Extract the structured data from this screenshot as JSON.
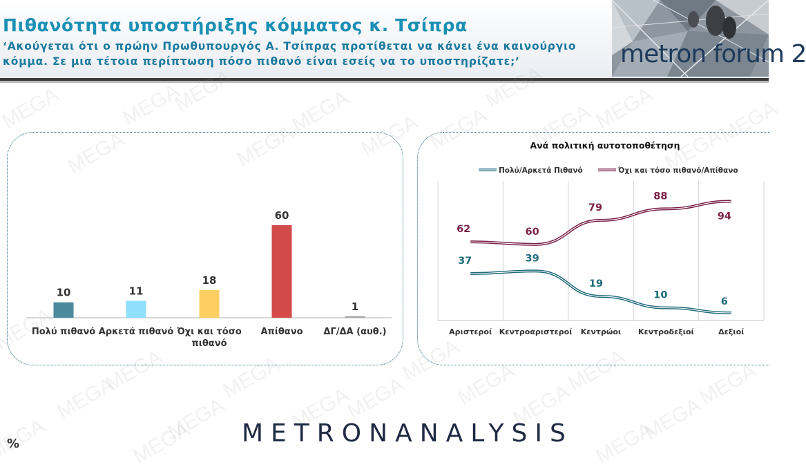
{
  "header": {
    "title": "Πιθανότητα υποστήριξης κόμματος κ. Τσίπρα",
    "question": "‘Ακούγεται ότι ο πρώην Πρωθυπουργός Α. Τσίπρας προτίθεται να κάνει ένα καινούργιο κόμμα. Σε μια τέτοια περίπτωση πόσο πιθανό είναι εσείς να το υποστηρίζατε;’",
    "logo_text": "metron forum 2"
  },
  "watermark_text": "MEGA",
  "footer": {
    "brand": "METRONANALYSIS",
    "unit": "%"
  },
  "colors": {
    "title": "#1b8fb4",
    "question": "#1b7a9e",
    "teal_series": "#1f6b7a",
    "maroon_series": "#7a1f45"
  },
  "chart_data": [
    {
      "type": "bar",
      "categories": [
        "Πολύ πιθανό",
        "Αρκετά πιθανό",
        "Όχι και τόσο πιθανό",
        "Απίθανο",
        "ΔΓ/ΔΑ (αυθ.)"
      ],
      "values": [
        10,
        11,
        18,
        60,
        1
      ],
      "colors": [
        "#4a8a9c",
        "#8ee0fb",
        "#fdcf63",
        "#d24a4a",
        "#a6a6a6"
      ],
      "ylim": [
        0,
        65
      ],
      "grid": false
    },
    {
      "type": "line",
      "title": "Ανά πολιτική αυτοτοποθέτηση",
      "categories": [
        "Αριστεροί",
        "Κεντροαριστεροί",
        "Κεντρώοι",
        "Κεντροδεξιοί",
        "Δεξιοί"
      ],
      "series": [
        {
          "name": "Πολύ/Αρκετά Πιθανό",
          "values": [
            37,
            39,
            19,
            10,
            6
          ],
          "color": "#1f6b7a"
        },
        {
          "name": "Όχι και τόσο πιθανό/Απίθανο",
          "values": [
            62,
            60,
            79,
            88,
            94
          ],
          "color": "#7a1f45"
        }
      ],
      "ylim": [
        0,
        110
      ],
      "legend": "top",
      "grid": "vertical"
    }
  ]
}
